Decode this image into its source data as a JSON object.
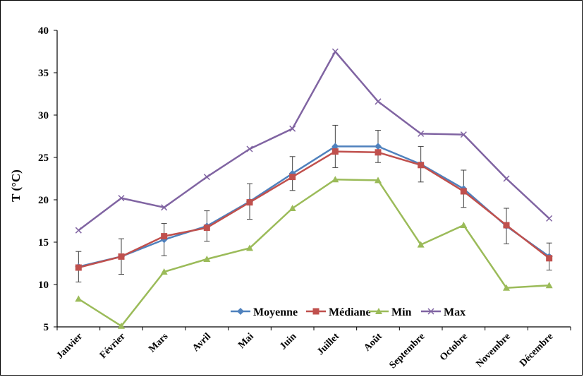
{
  "chart_data": {
    "type": "line",
    "title": "",
    "xlabel": "",
    "ylabel": "T (°C)",
    "ylim": [
      5,
      40
    ],
    "yticks": [
      5,
      10,
      15,
      20,
      25,
      30,
      35,
      40
    ],
    "grid": false,
    "legend_position": "bottom-center inside plot",
    "categories": [
      "Janvier",
      "Février",
      "Mars",
      "Avril",
      "Mai",
      "Juin",
      "Juillet",
      "Août",
      "Septembre",
      "Octobre",
      "Novembre",
      "Décembre"
    ],
    "series": [
      {
        "name": "Moyenne",
        "color": "#4F81BD",
        "marker": "diamond",
        "values": [
          12.1,
          13.3,
          15.3,
          16.9,
          19.8,
          23.1,
          26.3,
          26.3,
          24.2,
          21.3,
          16.9,
          13.3
        ],
        "error": [
          1.8,
          2.1,
          1.9,
          1.8,
          2.1,
          2.0,
          2.5,
          1.9,
          2.1,
          2.2,
          2.1,
          1.6
        ]
      },
      {
        "name": "Médiane",
        "color": "#C0504D",
        "marker": "square",
        "values": [
          12.0,
          13.3,
          15.7,
          16.7,
          19.7,
          22.7,
          25.7,
          25.6,
          24.1,
          21.0,
          17.0,
          13.1
        ]
      },
      {
        "name": "Min",
        "color": "#9BBB59",
        "marker": "triangle",
        "values": [
          8.3,
          5.1,
          11.5,
          13.0,
          14.3,
          19.0,
          22.4,
          22.3,
          14.7,
          17.0,
          9.6,
          9.9
        ]
      },
      {
        "name": "Max",
        "color": "#8064A2",
        "marker": "x",
        "values": [
          16.4,
          20.2,
          19.1,
          22.7,
          26.0,
          28.4,
          37.5,
          31.6,
          27.8,
          27.7,
          22.5,
          17.8
        ]
      }
    ]
  }
}
